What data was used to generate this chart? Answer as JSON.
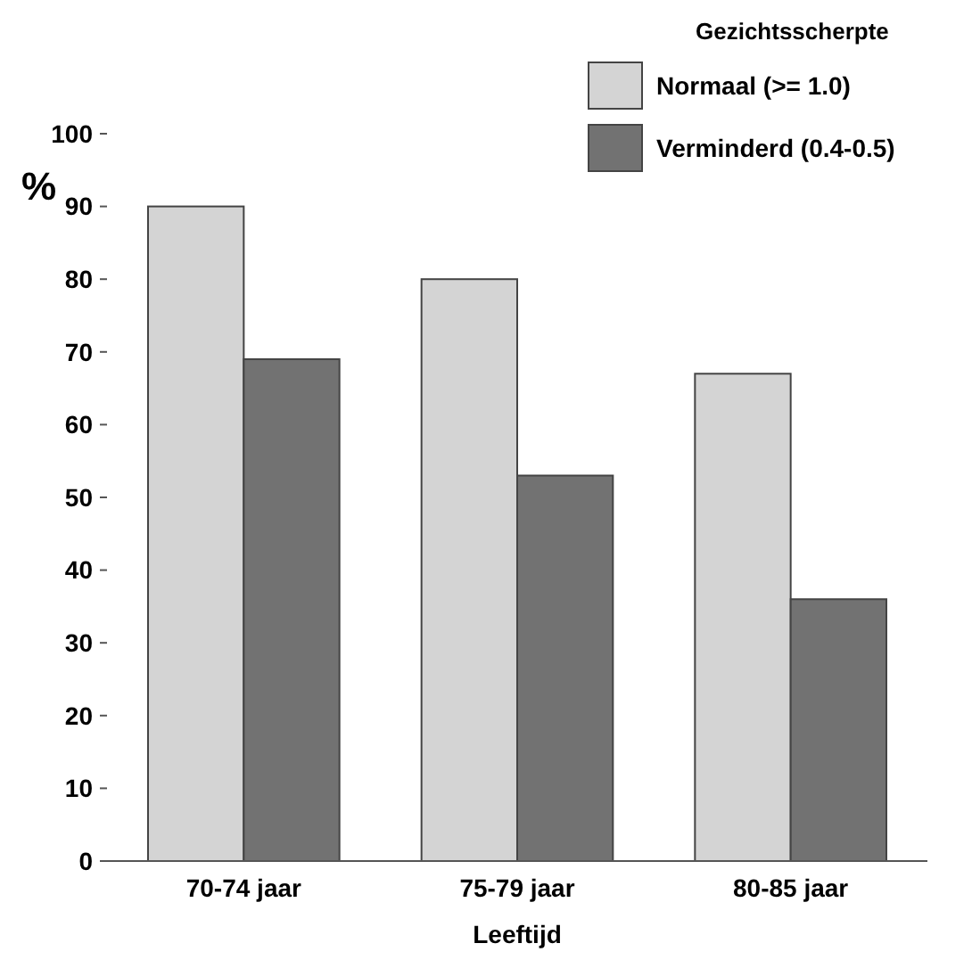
{
  "chart_data": {
    "type": "bar",
    "xlabel": "Leeftijd",
    "ylabel": "%",
    "legend_title": "Gezichtsscherpte",
    "categories": [
      "70-74 jaar",
      "75-79 jaar",
      "80-85 jaar"
    ],
    "series": [
      {
        "name": "Normaal (>= 1.0)",
        "color": "#d4d4d4",
        "values": [
          90,
          80,
          67
        ]
      },
      {
        "name": "Verminderd (0.4-0.5)",
        "color": "#727272",
        "values": [
          69,
          53,
          36
        ]
      }
    ],
    "ylim": [
      0,
      100
    ],
    "yticks": [
      0,
      10,
      20,
      30,
      40,
      50,
      60,
      70,
      80,
      90,
      100
    ],
    "legend": "top right"
  }
}
